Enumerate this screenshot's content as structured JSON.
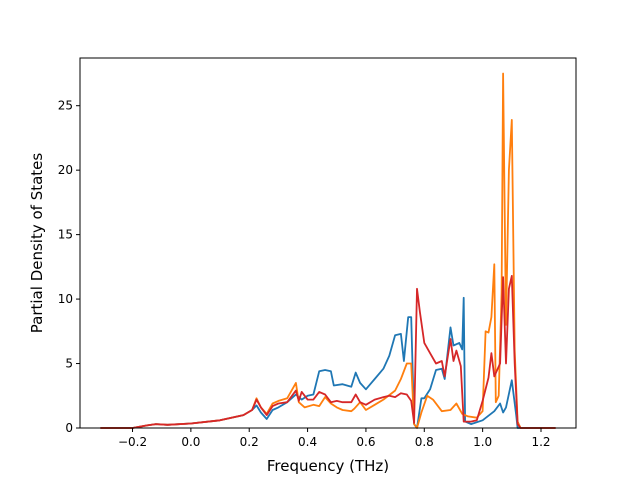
{
  "chart_data": {
    "type": "line",
    "title": "",
    "xlabel": "Frequency (THz)",
    "ylabel": "Partial Density of States",
    "xlim": [
      -0.38,
      1.32
    ],
    "ylim": [
      0,
      28.7
    ],
    "x_ticks": [
      -0.2,
      0.0,
      0.2,
      0.4,
      0.6,
      0.8,
      1.0,
      1.2
    ],
    "x_tick_labels": [
      "−0.2",
      "0.0",
      "0.2",
      "0.4",
      "0.6",
      "0.8",
      "1.0",
      "1.2"
    ],
    "y_ticks": [
      0,
      5,
      10,
      15,
      20,
      25
    ],
    "y_tick_labels": [
      "0",
      "5",
      "10",
      "15",
      "20",
      "25"
    ],
    "grid": false,
    "legend": "none",
    "series": [
      {
        "color": "#1f77b4",
        "points": [
          [
            -0.31,
            0
          ],
          [
            -0.2,
            0
          ],
          [
            -0.15,
            0.2
          ],
          [
            -0.12,
            0.3
          ],
          [
            -0.08,
            0.25
          ],
          [
            0.0,
            0.35
          ],
          [
            0.1,
            0.6
          ],
          [
            0.18,
            1.0
          ],
          [
            0.21,
            1.4
          ],
          [
            0.225,
            1.75
          ],
          [
            0.24,
            1.2
          ],
          [
            0.26,
            0.7
          ],
          [
            0.28,
            1.4
          ],
          [
            0.3,
            1.6
          ],
          [
            0.33,
            2.0
          ],
          [
            0.36,
            2.6
          ],
          [
            0.38,
            2.2
          ],
          [
            0.4,
            2.5
          ],
          [
            0.42,
            2.6
          ],
          [
            0.44,
            4.4
          ],
          [
            0.46,
            4.5
          ],
          [
            0.48,
            4.4
          ],
          [
            0.49,
            3.3
          ],
          [
            0.52,
            3.4
          ],
          [
            0.55,
            3.2
          ],
          [
            0.565,
            4.3
          ],
          [
            0.58,
            3.5
          ],
          [
            0.6,
            3.0
          ],
          [
            0.63,
            3.8
          ],
          [
            0.66,
            4.6
          ],
          [
            0.68,
            5.6
          ],
          [
            0.7,
            7.2
          ],
          [
            0.72,
            7.3
          ],
          [
            0.73,
            5.2
          ],
          [
            0.745,
            8.6
          ],
          [
            0.755,
            8.6
          ],
          [
            0.765,
            0.3
          ],
          [
            0.775,
            0.0
          ],
          [
            0.79,
            2.3
          ],
          [
            0.8,
            2.3
          ],
          [
            0.82,
            3.0
          ],
          [
            0.84,
            4.5
          ],
          [
            0.86,
            4.6
          ],
          [
            0.87,
            3.8
          ],
          [
            0.89,
            7.8
          ],
          [
            0.9,
            6.4
          ],
          [
            0.92,
            6.6
          ],
          [
            0.93,
            6.1
          ],
          [
            0.935,
            10.1
          ],
          [
            0.94,
            0.5
          ],
          [
            0.96,
            0.3
          ],
          [
            1.0,
            0.6
          ],
          [
            1.04,
            1.3
          ],
          [
            1.06,
            1.9
          ],
          [
            1.07,
            1.2
          ],
          [
            1.08,
            1.6
          ],
          [
            1.1,
            3.7
          ],
          [
            1.115,
            1.0
          ],
          [
            1.12,
            0
          ],
          [
            1.25,
            0
          ]
        ]
      },
      {
        "color": "#ff7f0e",
        "points": [
          [
            -0.31,
            0
          ],
          [
            -0.2,
            0
          ],
          [
            -0.15,
            0.2
          ],
          [
            -0.12,
            0.3
          ],
          [
            -0.08,
            0.25
          ],
          [
            0.0,
            0.35
          ],
          [
            0.1,
            0.6
          ],
          [
            0.18,
            1.0
          ],
          [
            0.21,
            1.4
          ],
          [
            0.225,
            2.3
          ],
          [
            0.24,
            1.6
          ],
          [
            0.26,
            1.1
          ],
          [
            0.28,
            1.9
          ],
          [
            0.3,
            2.1
          ],
          [
            0.33,
            2.3
          ],
          [
            0.36,
            3.5
          ],
          [
            0.37,
            2.0
          ],
          [
            0.39,
            1.6
          ],
          [
            0.42,
            1.8
          ],
          [
            0.44,
            1.7
          ],
          [
            0.46,
            2.4
          ],
          [
            0.48,
            1.9
          ],
          [
            0.5,
            1.6
          ],
          [
            0.52,
            1.4
          ],
          [
            0.55,
            1.3
          ],
          [
            0.56,
            1.5
          ],
          [
            0.58,
            2.0
          ],
          [
            0.6,
            1.4
          ],
          [
            0.63,
            1.8
          ],
          [
            0.66,
            2.2
          ],
          [
            0.7,
            2.9
          ],
          [
            0.72,
            3.8
          ],
          [
            0.74,
            5.0
          ],
          [
            0.755,
            5.0
          ],
          [
            0.765,
            0.3
          ],
          [
            0.775,
            0.0
          ],
          [
            0.79,
            1.2
          ],
          [
            0.81,
            2.5
          ],
          [
            0.83,
            2.2
          ],
          [
            0.86,
            1.3
          ],
          [
            0.89,
            1.4
          ],
          [
            0.91,
            1.9
          ],
          [
            0.93,
            1.1
          ],
          [
            0.95,
            0.9
          ],
          [
            0.98,
            0.8
          ],
          [
            1.0,
            1.3
          ],
          [
            1.01,
            7.5
          ],
          [
            1.02,
            7.4
          ],
          [
            1.03,
            8.6
          ],
          [
            1.04,
            12.7
          ],
          [
            1.045,
            2.0
          ],
          [
            1.055,
            2.5
          ],
          [
            1.065,
            10.5
          ],
          [
            1.07,
            27.5
          ],
          [
            1.08,
            8.0
          ],
          [
            1.09,
            20.0
          ],
          [
            1.1,
            23.9
          ],
          [
            1.11,
            6.0
          ],
          [
            1.12,
            0.5
          ],
          [
            1.13,
            0
          ],
          [
            1.25,
            0
          ]
        ]
      },
      {
        "color": "#d62728",
        "points": [
          [
            -0.31,
            0
          ],
          [
            -0.2,
            0
          ],
          [
            -0.15,
            0.2
          ],
          [
            -0.12,
            0.3
          ],
          [
            -0.08,
            0.25
          ],
          [
            0.0,
            0.35
          ],
          [
            0.1,
            0.6
          ],
          [
            0.18,
            1.0
          ],
          [
            0.21,
            1.4
          ],
          [
            0.225,
            2.2
          ],
          [
            0.24,
            1.6
          ],
          [
            0.26,
            1.0
          ],
          [
            0.28,
            1.7
          ],
          [
            0.3,
            1.9
          ],
          [
            0.33,
            2.0
          ],
          [
            0.36,
            2.9
          ],
          [
            0.37,
            2.1
          ],
          [
            0.38,
            2.8
          ],
          [
            0.4,
            2.2
          ],
          [
            0.42,
            2.2
          ],
          [
            0.44,
            2.8
          ],
          [
            0.46,
            2.6
          ],
          [
            0.48,
            2.0
          ],
          [
            0.5,
            2.1
          ],
          [
            0.52,
            2.0
          ],
          [
            0.55,
            2.0
          ],
          [
            0.565,
            2.6
          ],
          [
            0.58,
            2.0
          ],
          [
            0.6,
            1.8
          ],
          [
            0.63,
            2.2
          ],
          [
            0.66,
            2.4
          ],
          [
            0.68,
            2.5
          ],
          [
            0.7,
            2.4
          ],
          [
            0.72,
            2.7
          ],
          [
            0.74,
            2.6
          ],
          [
            0.755,
            2.1
          ],
          [
            0.765,
            0.4
          ],
          [
            0.775,
            10.8
          ],
          [
            0.785,
            9.0
          ],
          [
            0.8,
            6.6
          ],
          [
            0.82,
            5.8
          ],
          [
            0.84,
            5.0
          ],
          [
            0.86,
            5.2
          ],
          [
            0.87,
            4.0
          ],
          [
            0.89,
            6.9
          ],
          [
            0.9,
            5.2
          ],
          [
            0.91,
            6.0
          ],
          [
            0.925,
            4.8
          ],
          [
            0.935,
            0.5
          ],
          [
            0.96,
            0.5
          ],
          [
            0.98,
            0.6
          ],
          [
            1.0,
            2.1
          ],
          [
            1.02,
            3.9
          ],
          [
            1.03,
            5.8
          ],
          [
            1.04,
            4.0
          ],
          [
            1.06,
            5.0
          ],
          [
            1.07,
            11.7
          ],
          [
            1.08,
            5.0
          ],
          [
            1.09,
            10.8
          ],
          [
            1.1,
            11.8
          ],
          [
            1.11,
            5.0
          ],
          [
            1.12,
            0.3
          ],
          [
            1.13,
            0
          ],
          [
            1.25,
            0
          ]
        ]
      }
    ]
  }
}
